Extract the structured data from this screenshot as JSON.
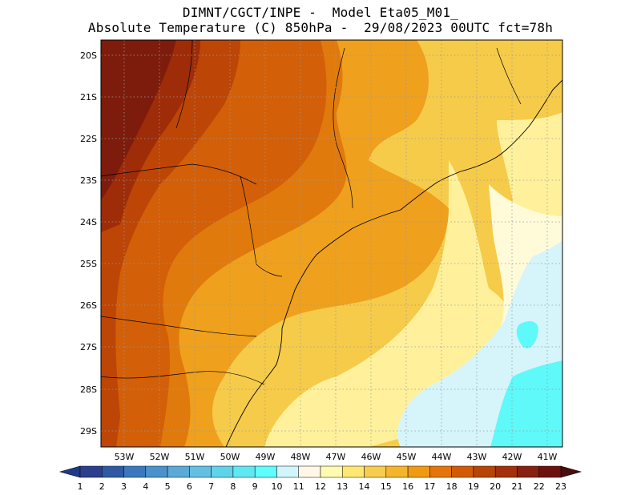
{
  "title": {
    "line1": "DIMNT/CGCT/INPE -  Model Eta05_M01_",
    "line2": "Absolute Temperature (C) 850hPa -  29/08/2023 00UTC fct=78h"
  },
  "map": {
    "lat_ticks": [
      "20S",
      "21S",
      "22S",
      "23S",
      "24S",
      "25S",
      "26S",
      "27S",
      "28S",
      "29S"
    ],
    "lon_ticks": [
      "53W",
      "52W",
      "51W",
      "50W",
      "49W",
      "48W",
      "47W",
      "46W",
      "45W",
      "44W",
      "43W",
      "42W",
      "41W"
    ]
  },
  "colorbar": {
    "labels": [
      "1",
      "2",
      "3",
      "4",
      "5",
      "6",
      "7",
      "8",
      "9",
      "10",
      "11",
      "12",
      "13",
      "14",
      "15",
      "16",
      "17",
      "18",
      "19",
      "20",
      "21",
      "22",
      "23"
    ],
    "colors": [
      "#2c3e8c",
      "#2f5aa3",
      "#3a78bd",
      "#4b92cc",
      "#5aa9d6",
      "#63c0e2",
      "#5fd3ea",
      "#5fe8f2",
      "#5ffdfd",
      "#d2f5fb",
      "#fff8e6",
      "#fffbb0",
      "#ffe774",
      "#f7cd50",
      "#f4b52c",
      "#f09a12",
      "#e5750b",
      "#d25a06",
      "#b84406",
      "#a3300a",
      "#88200f",
      "#6d1010"
    ],
    "left_arrow_color": "#1f3a8a",
    "right_arrow_color": "#4a0d0d"
  },
  "palette": {
    "t22": "#7d1c0c",
    "t21": "#9e2c08",
    "t20": "#bd4506",
    "t19": "#d35f08",
    "t18": "#e17a0c",
    "t17": "#efa01c",
    "t16": "#f4b52c",
    "t15": "#f6cb4a",
    "t14": "#ffe06a",
    "t13": "#fff19c",
    "t12": "#fffbd9",
    "t11": "#d5f5fb",
    "t10": "#5ff9f9"
  }
}
